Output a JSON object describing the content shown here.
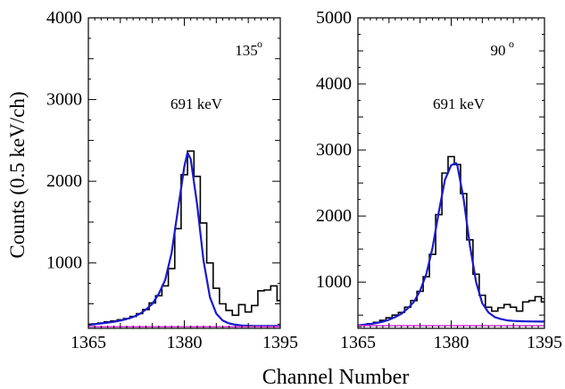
{
  "figure": {
    "ylabel": "Counts (0.5 keV/ch)",
    "xlabel": "Channel Number"
  },
  "chart_data": [
    {
      "type": "line",
      "title": "",
      "xlabel": "Channel Number",
      "ylabel": "Counts (0.5 keV/ch)",
      "xlim": [
        1365,
        1395
      ],
      "ylim": [
        200,
        4000
      ],
      "x_ticks": [
        1365,
        1380,
        1395
      ],
      "y_ticks": [
        1000,
        2000,
        3000,
        4000
      ],
      "grid": false,
      "legend": "none",
      "annotations": {
        "angle": "135",
        "angle_unit": "o",
        "energy": "691 keV"
      },
      "colors": {
        "histogram": "#000000",
        "fit": "#1a1acd",
        "background": "#e040e0"
      },
      "series": [
        {
          "style": "step",
          "x": [
            1364.5,
            1365.5,
            1366.5,
            1367.5,
            1368.5,
            1369.5,
            1370.5,
            1371.5,
            1372.5,
            1373.5,
            1374.5,
            1375.5,
            1376.5,
            1377.5,
            1378.5,
            1379.5,
            1380.5,
            1381.5,
            1382.5,
            1383.5,
            1384.5,
            1385.5,
            1386.5,
            1387.5,
            1388.5,
            1389.5,
            1390.5,
            1391.5,
            1392.5,
            1393.5,
            1394.5
          ],
          "y": [
            250,
            255,
            265,
            280,
            290,
            305,
            320,
            345,
            380,
            430,
            510,
            600,
            720,
            930,
            1420,
            2080,
            2370,
            2060,
            1490,
            1000,
            690,
            500,
            420,
            360,
            490,
            400,
            480,
            660,
            670,
            720,
            540
          ]
        },
        {
          "style": "smooth",
          "x": [
            1365,
            1366,
            1367,
            1368,
            1369,
            1370,
            1371,
            1372,
            1373,
            1374,
            1375,
            1376,
            1377,
            1378,
            1379,
            1380,
            1380.5,
            1381,
            1382,
            1383,
            1384,
            1385,
            1386,
            1387,
            1388,
            1389,
            1390,
            1391,
            1392,
            1393,
            1394,
            1395
          ],
          "y": [
            240,
            250,
            260,
            270,
            280,
            295,
            315,
            340,
            375,
            430,
            500,
            620,
            790,
            1120,
            1650,
            2180,
            2350,
            2270,
            1720,
            1030,
            580,
            380,
            295,
            260,
            245,
            235,
            232,
            230,
            230,
            230,
            230,
            230
          ]
        },
        {
          "style": "flat",
          "x": [
            1365,
            1395
          ],
          "y": [
            220,
            220
          ]
        }
      ]
    },
    {
      "type": "line",
      "title": "",
      "xlabel": "Channel Number",
      "ylabel": "Counts (0.5 keV/ch)",
      "xlim": [
        1365,
        1395
      ],
      "ylim": [
        300,
        5000
      ],
      "x_ticks": [
        1365,
        1380,
        1395
      ],
      "y_ticks": [
        1000,
        2000,
        3000,
        4000,
        5000
      ],
      "grid": false,
      "legend": "none",
      "annotations": {
        "angle": "90",
        "angle_unit": "o",
        "energy": "691 keV"
      },
      "colors": {
        "histogram": "#000000",
        "fit": "#1a1acd",
        "background": "#e040e0"
      },
      "series": [
        {
          "style": "step",
          "x": [
            1364.5,
            1365.5,
            1366.5,
            1367.5,
            1368.5,
            1369.5,
            1370.5,
            1371.5,
            1372.5,
            1373.5,
            1374.5,
            1375.5,
            1376.5,
            1377.5,
            1378.5,
            1379.5,
            1380.5,
            1381.5,
            1382.5,
            1383.5,
            1384.5,
            1385.5,
            1386.5,
            1387.5,
            1388.5,
            1389.5,
            1390.5,
            1391.5,
            1392.5,
            1393.5,
            1394.5
          ],
          "y": [
            330,
            350,
            370,
            390,
            420,
            460,
            500,
            540,
            620,
            720,
            860,
            1080,
            1420,
            2020,
            2650,
            2900,
            2780,
            2340,
            1640,
            1120,
            800,
            620,
            560,
            610,
            660,
            620,
            560,
            700,
            720,
            780,
            700
          ]
        },
        {
          "style": "smooth",
          "x": [
            1365,
            1366,
            1367,
            1368,
            1369,
            1370,
            1371,
            1372,
            1373,
            1374,
            1375,
            1376,
            1377,
            1378,
            1379,
            1380,
            1380.8,
            1381,
            1382,
            1383,
            1384,
            1385,
            1386,
            1387,
            1388,
            1389,
            1390,
            1391,
            1392,
            1393,
            1394,
            1395
          ],
          "y": [
            345,
            355,
            365,
            380,
            400,
            430,
            470,
            520,
            600,
            700,
            870,
            1120,
            1520,
            2060,
            2550,
            2770,
            2800,
            2760,
            2260,
            1560,
            1000,
            680,
            540,
            470,
            440,
            420,
            412,
            408,
            405,
            404,
            403,
            403
          ]
        },
        {
          "style": "flat",
          "x": [
            1365,
            1395
          ],
          "y": [
            340,
            340
          ]
        }
      ]
    }
  ]
}
